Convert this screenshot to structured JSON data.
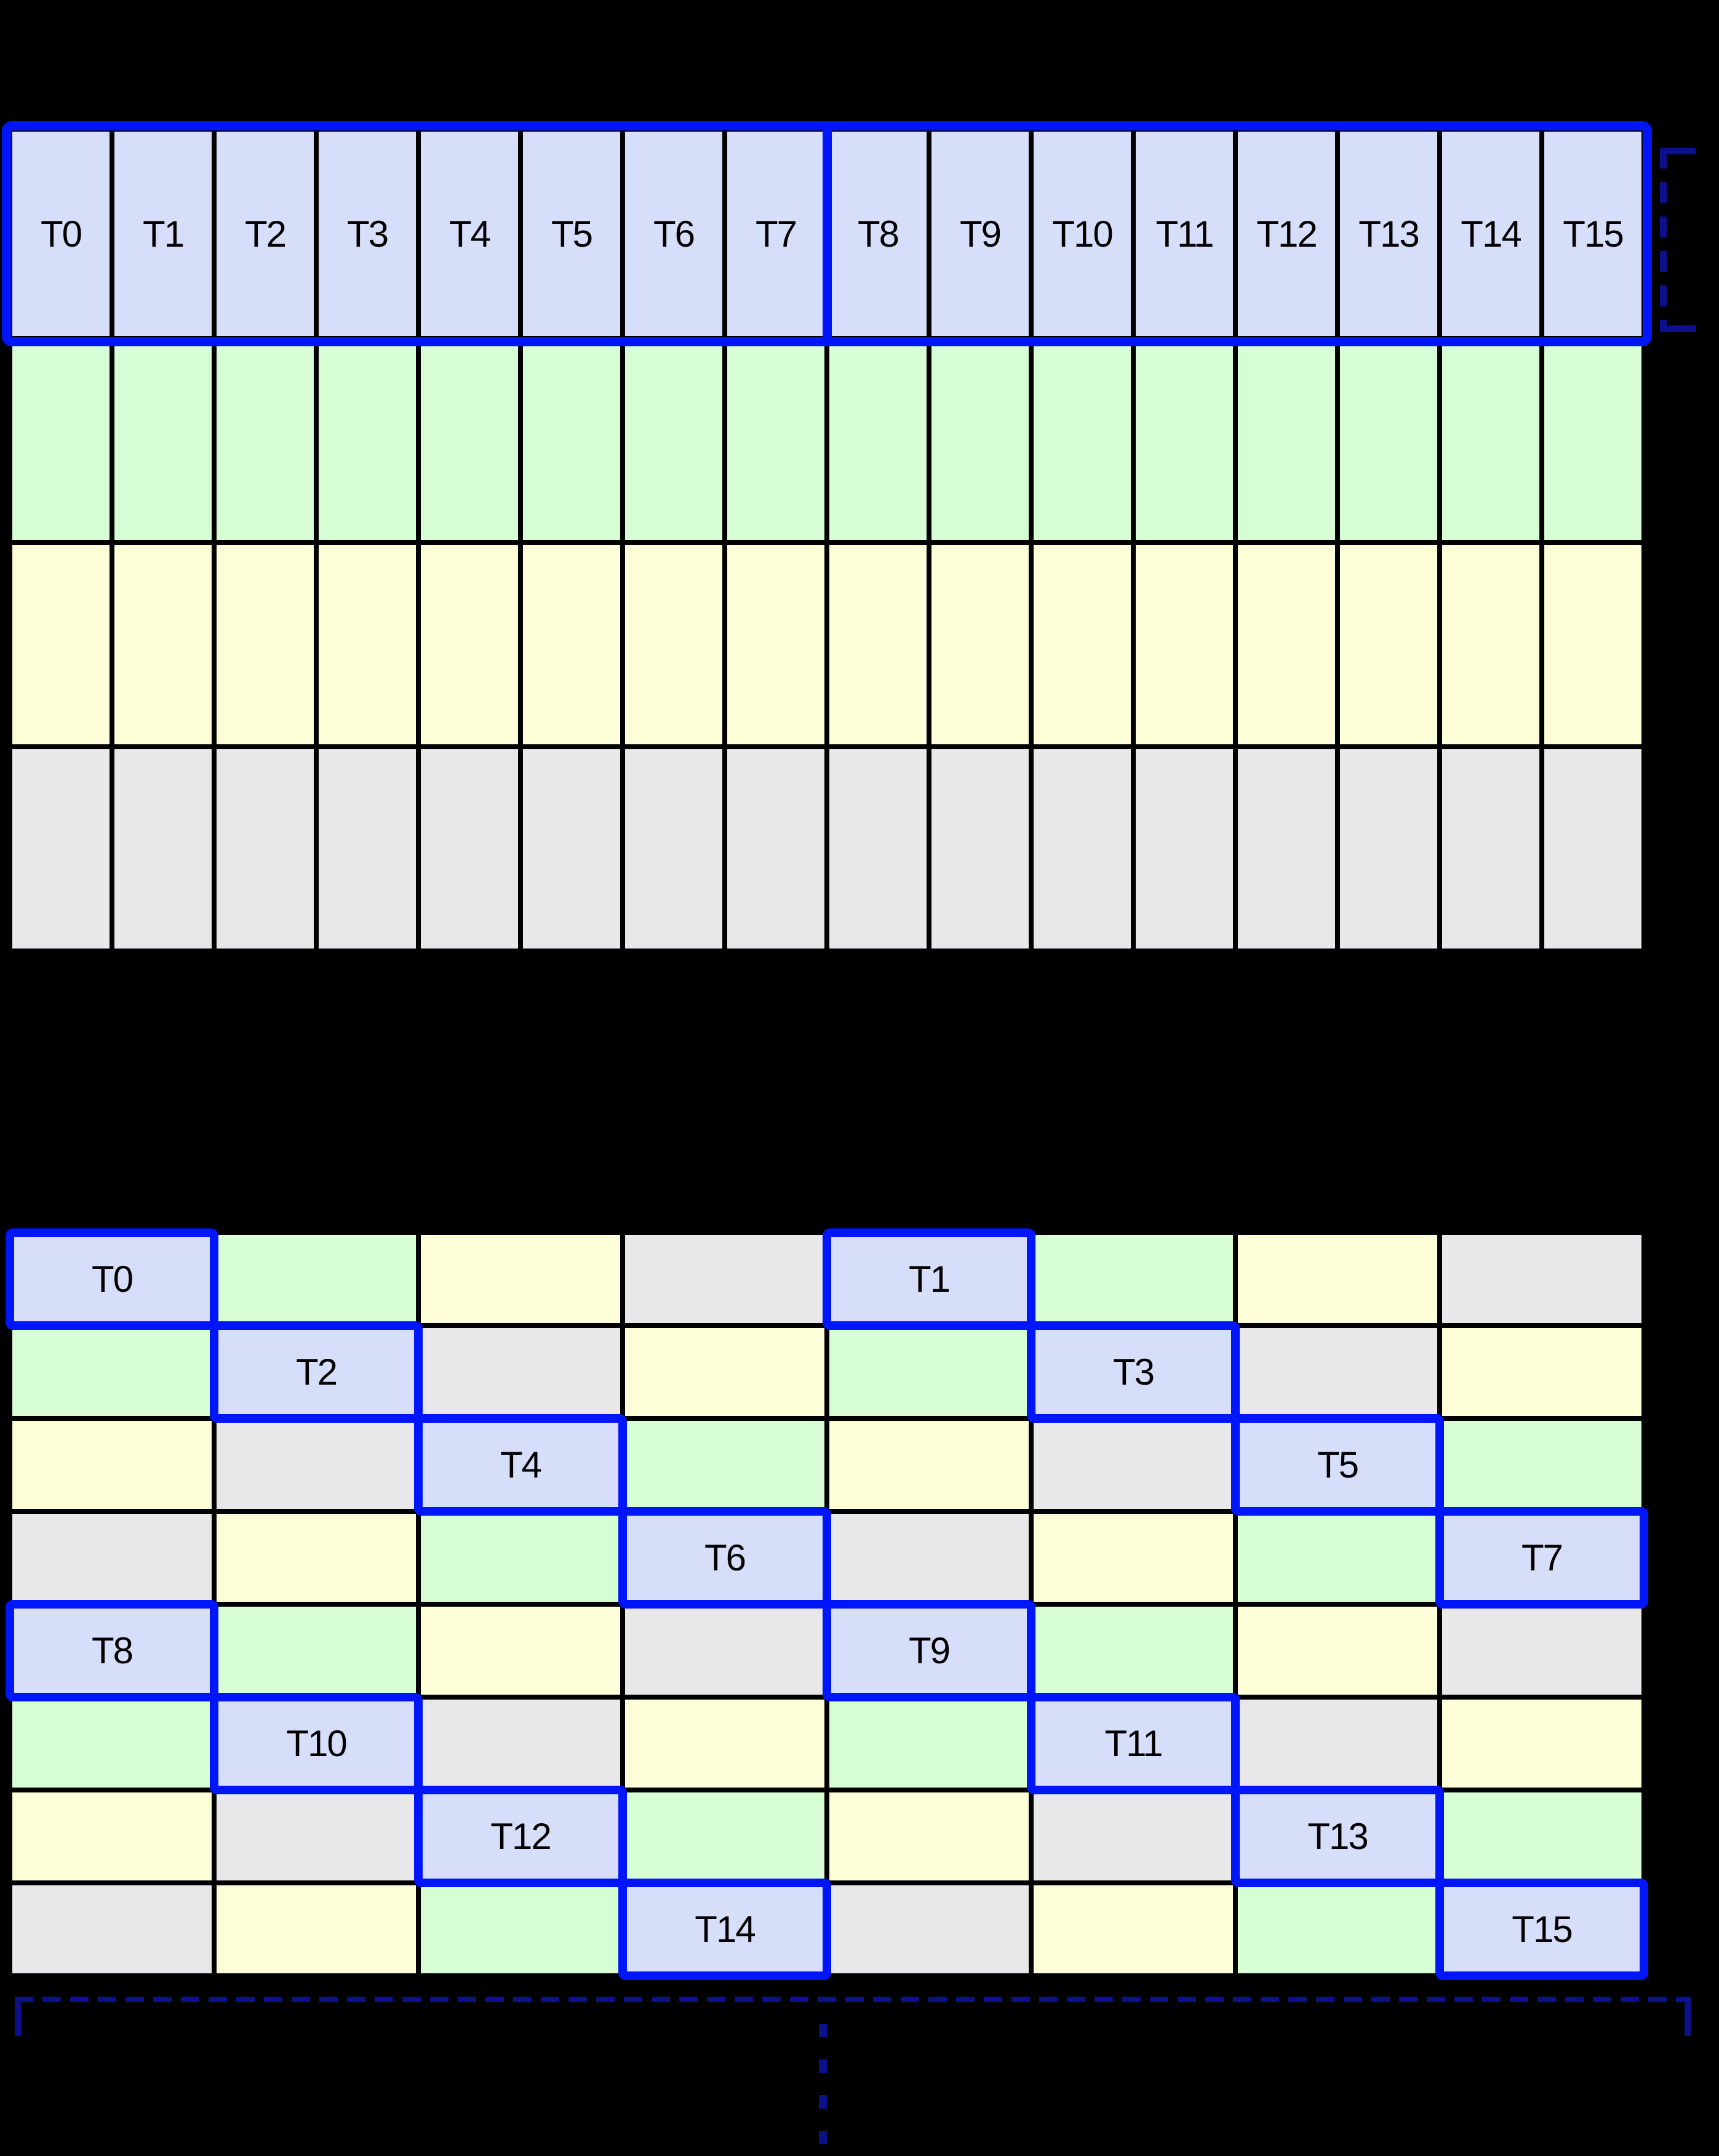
{
  "palette": {
    "background": "#000000",
    "grid_line": "#000000",
    "text": "#000000",
    "cell_blue": "#D7DEFA",
    "cell_green": "#D6FDD4",
    "cell_yellow": "#FDFDD7",
    "cell_gray": "#E8E8EA",
    "highlight_border": "#0016FA",
    "bracket_navy": "#0C108C"
  },
  "top_grid": {
    "columns": 16,
    "rows": 4,
    "header_row": {
      "color": "blue",
      "highlighted": true,
      "split_after_column": 8,
      "labels": [
        "T0",
        "T1",
        "T2",
        "T3",
        "T4",
        "T5",
        "T6",
        "T7",
        "T8",
        "T9",
        "T10",
        "T11",
        "T12",
        "T13",
        "T14",
        "T15"
      ]
    },
    "body_row_colors": [
      "green",
      "yellow",
      "gray"
    ]
  },
  "bottom_grid": {
    "columns": 8,
    "rows": [
      {
        "cells": [
          {
            "color": "blue",
            "label": "T0",
            "highlighted": true
          },
          {
            "color": "green"
          },
          {
            "color": "yellow"
          },
          {
            "color": "gray"
          },
          {
            "color": "blue",
            "label": "T1",
            "highlighted": true
          },
          {
            "color": "green"
          },
          {
            "color": "yellow"
          },
          {
            "color": "gray"
          }
        ]
      },
      {
        "cells": [
          {
            "color": "green"
          },
          {
            "color": "blue",
            "label": "T2",
            "highlighted": true
          },
          {
            "color": "gray"
          },
          {
            "color": "yellow"
          },
          {
            "color": "green"
          },
          {
            "color": "blue",
            "label": "T3",
            "highlighted": true
          },
          {
            "color": "gray"
          },
          {
            "color": "yellow"
          }
        ]
      },
      {
        "cells": [
          {
            "color": "yellow"
          },
          {
            "color": "gray"
          },
          {
            "color": "blue",
            "label": "T4",
            "highlighted": true
          },
          {
            "color": "green"
          },
          {
            "color": "yellow"
          },
          {
            "color": "gray"
          },
          {
            "color": "blue",
            "label": "T5",
            "highlighted": true
          },
          {
            "color": "green"
          }
        ]
      },
      {
        "cells": [
          {
            "color": "gray"
          },
          {
            "color": "yellow"
          },
          {
            "color": "green"
          },
          {
            "color": "blue",
            "label": "T6",
            "highlighted": true
          },
          {
            "color": "gray"
          },
          {
            "color": "yellow"
          },
          {
            "color": "green"
          },
          {
            "color": "blue",
            "label": "T7",
            "highlighted": true
          }
        ]
      },
      {
        "cells": [
          {
            "color": "blue",
            "label": "T8",
            "highlighted": true
          },
          {
            "color": "green"
          },
          {
            "color": "yellow"
          },
          {
            "color": "gray"
          },
          {
            "color": "blue",
            "label": "T9",
            "highlighted": true
          },
          {
            "color": "green"
          },
          {
            "color": "yellow"
          },
          {
            "color": "gray"
          }
        ]
      },
      {
        "cells": [
          {
            "color": "green"
          },
          {
            "color": "blue",
            "label": "T10",
            "highlighted": true
          },
          {
            "color": "gray"
          },
          {
            "color": "yellow"
          },
          {
            "color": "green"
          },
          {
            "color": "blue",
            "label": "T11",
            "highlighted": true
          },
          {
            "color": "gray"
          },
          {
            "color": "yellow"
          }
        ]
      },
      {
        "cells": [
          {
            "color": "yellow"
          },
          {
            "color": "gray"
          },
          {
            "color": "blue",
            "label": "T12",
            "highlighted": true
          },
          {
            "color": "green"
          },
          {
            "color": "yellow"
          },
          {
            "color": "gray"
          },
          {
            "color": "blue",
            "label": "T13",
            "highlighted": true
          },
          {
            "color": "green"
          }
        ]
      },
      {
        "cells": [
          {
            "color": "gray"
          },
          {
            "color": "yellow"
          },
          {
            "color": "green"
          },
          {
            "color": "blue",
            "label": "T14",
            "highlighted": true
          },
          {
            "color": "gray"
          },
          {
            "color": "yellow"
          },
          {
            "color": "green"
          },
          {
            "color": "blue",
            "label": "T15",
            "highlighted": true
          }
        ]
      }
    ]
  }
}
